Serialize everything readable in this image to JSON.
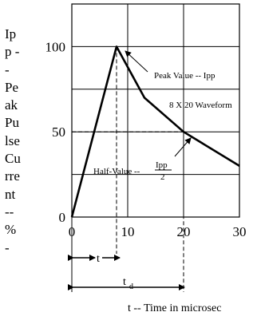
{
  "chart_data": {
    "type": "line",
    "ylabel": "Ip\np -\n-\nPe\nak\nPu\nlse\nCu\nrre\nnt\n--\n%\n-",
    "xlabel": "t -- Time in microsec",
    "xlim": [
      0,
      30
    ],
    "ylim": [
      0,
      125
    ],
    "x_ticks": [
      "0",
      "10",
      "20",
      "30"
    ],
    "y_ticks": [
      "0",
      "50",
      "100"
    ],
    "grid": true,
    "series": [
      {
        "values": [
          [
            0,
            0
          ],
          [
            8,
            100
          ],
          [
            13,
            70
          ],
          [
            20,
            50
          ],
          [
            30,
            30
          ]
        ]
      }
    ],
    "annotations": {
      "peak": "Peak Value -- Ipp",
      "waveform": "8 X 20 Waveform",
      "half_prefix": "Half-Value --",
      "half_num": "Ipp",
      "half_den": "2",
      "t": "t",
      "td_main": "t",
      "td_sub": "d"
    }
  }
}
